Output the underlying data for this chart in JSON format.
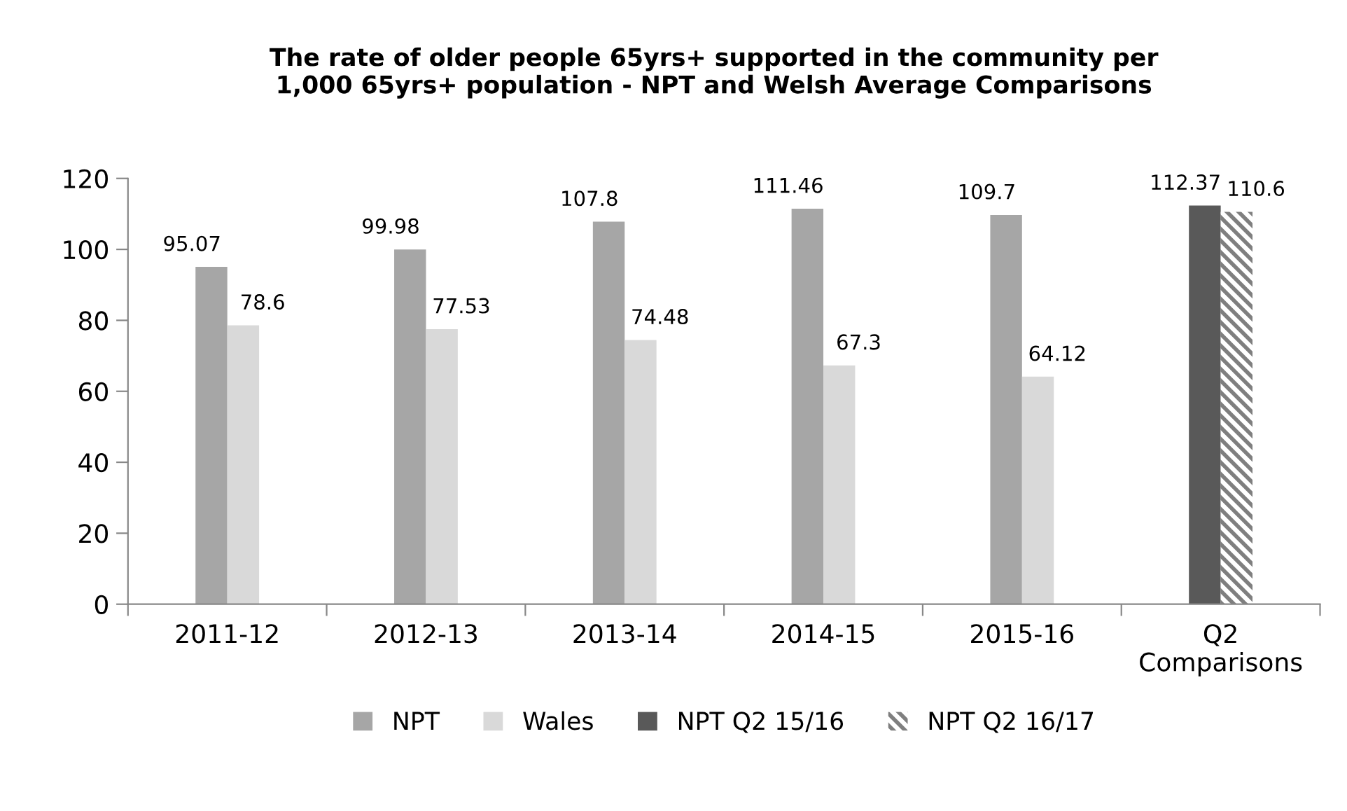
{
  "chart_data": {
    "type": "bar",
    "title": "The rate of older people 65yrs+ supported in the community per\n1,000 65yrs+ population - NPT and Welsh Average Comparisons",
    "categories": [
      "2011-12",
      "2012-13",
      "2013-14",
      "2014-15",
      "2015-16",
      "Q2\nComparisons"
    ],
    "series": [
      {
        "name": "NPT",
        "color": "#a6a6a6",
        "values": [
          95.07,
          99.98,
          107.8,
          111.46,
          109.7,
          null
        ]
      },
      {
        "name": "Wales",
        "color": "#d9d9d9",
        "values": [
          78.6,
          77.53,
          74.48,
          67.3,
          64.12,
          null
        ]
      },
      {
        "name": "NPT Q2 15/16",
        "color": "#595959",
        "values": [
          null,
          null,
          null,
          null,
          null,
          112.37
        ]
      },
      {
        "name": "NPT Q2 16/17",
        "color": "#7f7f7f",
        "values": [
          null,
          null,
          null,
          null,
          null,
          110.6
        ]
      }
    ],
    "ylim": [
      0,
      120
    ],
    "yticks": [
      0,
      20,
      40,
      60,
      80,
      100,
      120
    ],
    "grid": false,
    "legend": "bottom",
    "data_labels": true
  }
}
